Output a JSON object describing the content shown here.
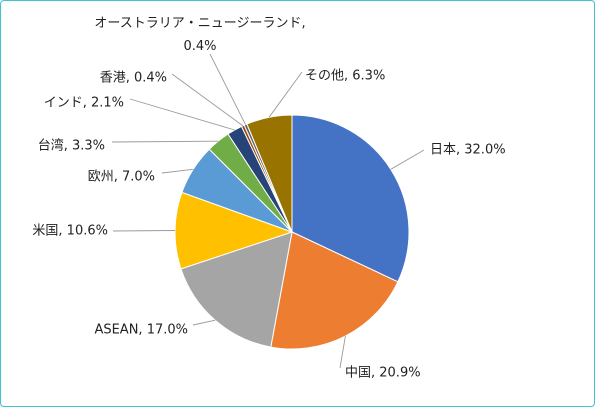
{
  "chart_data": {
    "type": "pie",
    "title": "",
    "slices": [
      {
        "label": "日本",
        "value": 32.0,
        "value_text": "32.0%",
        "color": "#4472c4"
      },
      {
        "label": "中国",
        "value": 20.9,
        "value_text": "20.9%",
        "color": "#ed7d31"
      },
      {
        "label": "ASEAN",
        "value": 17.0,
        "value_text": "17.0%",
        "color": "#a5a5a5"
      },
      {
        "label": "米国",
        "value": 10.6,
        "value_text": "10.6%",
        "color": "#ffc000"
      },
      {
        "label": "欧州",
        "value": 7.0,
        "value_text": "7.0%",
        "color": "#5b9bd5"
      },
      {
        "label": "台湾",
        "value": 3.3,
        "value_text": "3.3%",
        "color": "#70ad47"
      },
      {
        "label": "インド",
        "value": 2.1,
        "value_text": "2.1%",
        "color": "#264478"
      },
      {
        "label": "香港",
        "value": 0.4,
        "value_text": "0.4%",
        "color": "#9e480e"
      },
      {
        "label": "オーストラリア・ニュージーランド",
        "value": 0.4,
        "value_text": "0.4%",
        "color": "#636363"
      },
      {
        "label": "その他",
        "value": 6.3,
        "value_text": "6.3%",
        "color": "#997300"
      }
    ],
    "start": "12 o'clock",
    "direction": "clockwise",
    "legend": "none",
    "border_color": "#3fc3cf"
  }
}
